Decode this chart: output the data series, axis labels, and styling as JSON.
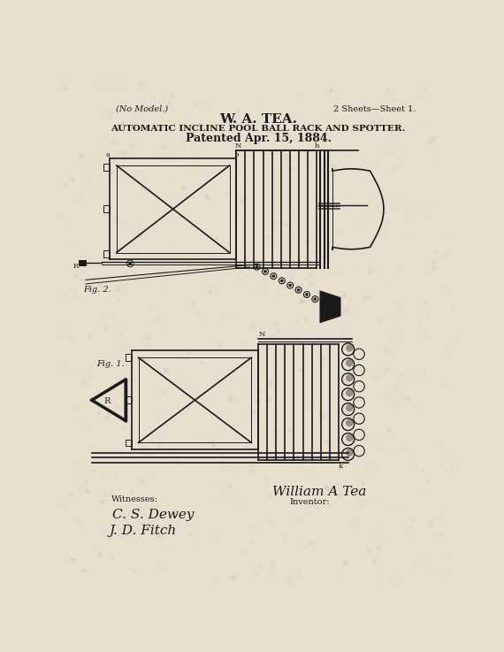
{
  "bg_color": "#e8dece",
  "text_color": "#1a1a1a",
  "title_name": "W. A. TEA.",
  "title_sub": "AUTOMATIC INCLINE POOL BALL RACK AND SPOTTER.",
  "title_date": "Patented Apr. 15, 1884.",
  "top_left": "(No Model.)",
  "top_right": "2 Sheets—Sheet 1.",
  "witnesses_label": "Witnesses:",
  "witness1": "C. S. Dewey",
  "witness2": "J. D. Fitch",
  "inventor_label": "William A Tea",
  "inventor_sub": "Inventor:",
  "fig1_label": "Fig. 1.",
  "fig2_label": "Fig. 2."
}
